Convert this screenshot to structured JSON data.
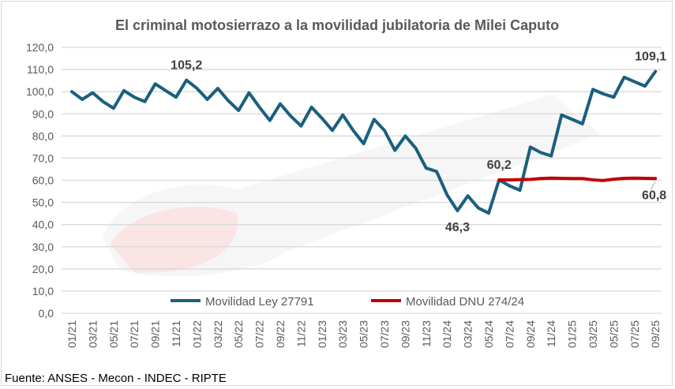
{
  "chart_data": {
    "type": "line",
    "title": "El criminal motosierrazo a la movilidad jubilatoria de Milei Caputo",
    "xlabel": "",
    "ylabel": "",
    "ylim": [
      0,
      120
    ],
    "yticks": [
      "0,0",
      "10,0",
      "20,0",
      "30,0",
      "40,0",
      "50,0",
      "60,0",
      "70,0",
      "80,0",
      "90,0",
      "100,0",
      "110,0",
      "120,0"
    ],
    "xtick_labels": [
      "01/21",
      "03/21",
      "05/21",
      "07/21",
      "09/21",
      "11/21",
      "01/22",
      "03/22",
      "05/22",
      "07/22",
      "09/22",
      "11/22",
      "01/23",
      "03/23",
      "05/23",
      "07/23",
      "09/23",
      "11/23",
      "01/24",
      "03/24",
      "05/24",
      "07/24",
      "09/24",
      "11/24",
      "01/25",
      "03/25",
      "05/25",
      "07/25",
      "09/25"
    ],
    "grid": true,
    "legend_position": "bottom",
    "series": [
      {
        "name": "Movilidad Ley 27791",
        "color": "#1a5f7f",
        "start_index": 0,
        "values": [
          100,
          96.5,
          99.5,
          95.5,
          92.5,
          100.5,
          97.5,
          95.5,
          103.5,
          100.5,
          97.5,
          105.2,
          101.5,
          96.5,
          101.5,
          96,
          91.5,
          99.5,
          93,
          87,
          94.5,
          89,
          84.5,
          93,
          88,
          82.5,
          89.5,
          82.5,
          76.5,
          87.5,
          82.5,
          73.5,
          80,
          74.5,
          65.5,
          64,
          53.5,
          46.3,
          53,
          47.5,
          45.2,
          60.2,
          57.5,
          55.5,
          75,
          72.5,
          71,
          89.5,
          87.5,
          85.5,
          101,
          99,
          97.5,
          106.5,
          104.5,
          102.5,
          109.1
        ]
      },
      {
        "name": "Movilidad DNU 274/24",
        "color": "#c00000",
        "start_index": 41,
        "values": [
          60.2,
          60.2,
          60.3,
          60.4,
          60.8,
          61.0,
          60.9,
          60.8,
          60.8,
          60.2,
          59.9,
          60.5,
          60.9,
          61.0,
          60.9,
          60.8
        ]
      }
    ],
    "annotations": [
      {
        "text": "105,2",
        "series": 0,
        "index": 11,
        "pos": "above"
      },
      {
        "text": "46,3",
        "series": 0,
        "index": 37,
        "pos": "below"
      },
      {
        "text": "60,2",
        "series": 0,
        "index": 41,
        "pos": "above"
      },
      {
        "text": "109,1",
        "series": 0,
        "index": 56,
        "pos": "above"
      },
      {
        "text": "60,8",
        "series": 1,
        "index": 56,
        "pos": "below"
      }
    ]
  },
  "source": "Fuente: ANSES - Mecon - INDEC - RIPTE"
}
